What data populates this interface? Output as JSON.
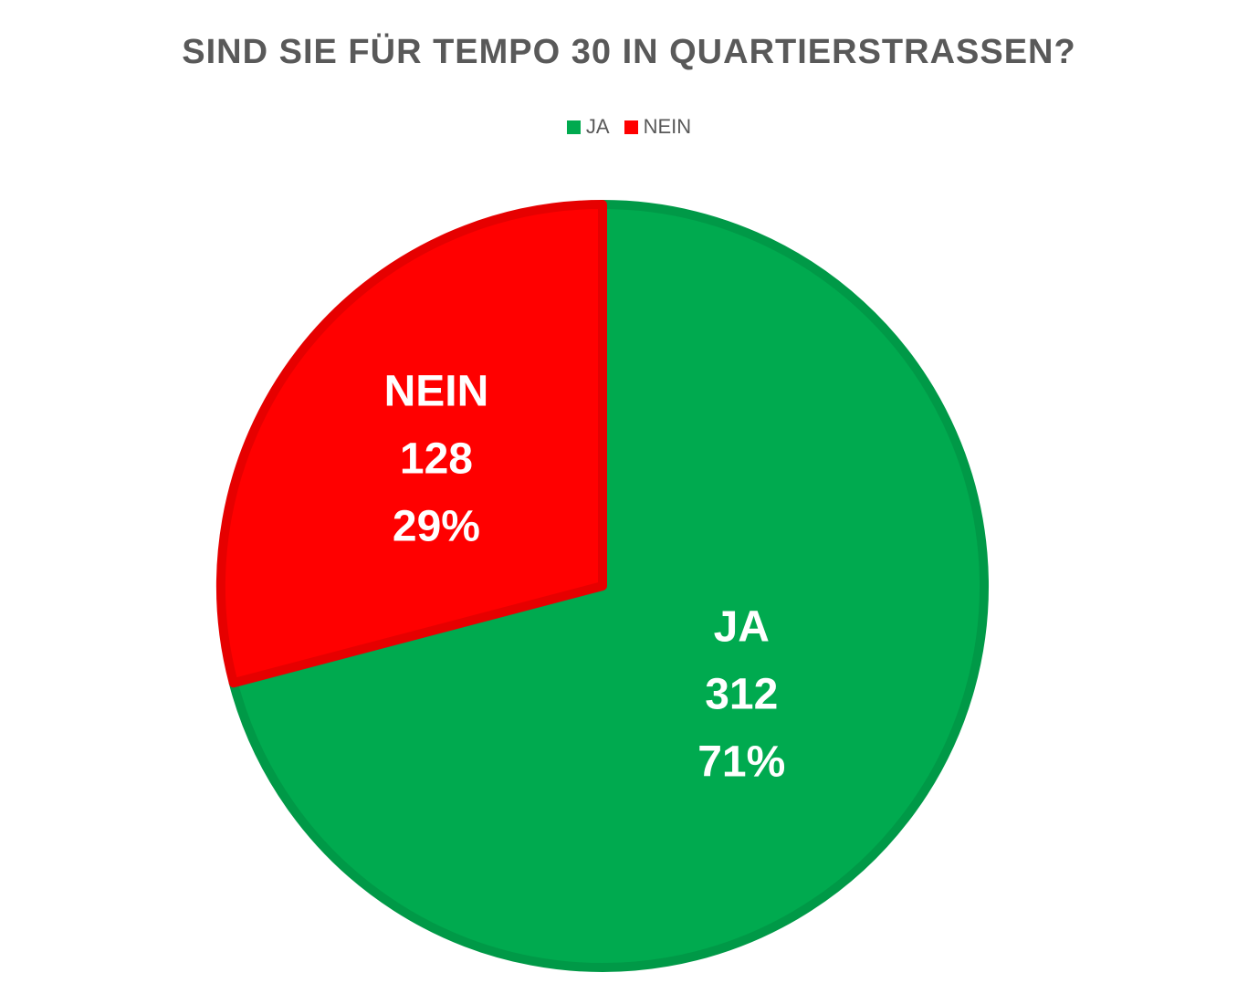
{
  "chart_data": {
    "type": "pie",
    "title": "SIND SIE FÜR TEMPO 30 IN QUARTIERSTRASSEN?",
    "legend_position": "top",
    "slices": [
      {
        "label": "JA",
        "value": 312,
        "percent": "71%",
        "color": "#00AA4F"
      },
      {
        "label": "NEIN",
        "value": 128,
        "percent": "29%",
        "color": "#FF0000"
      }
    ]
  }
}
